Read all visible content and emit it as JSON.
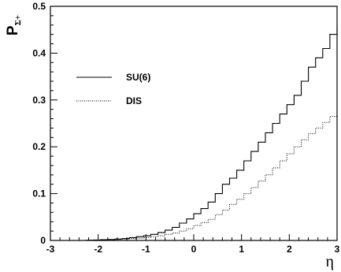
{
  "chart_data": {
    "type": "line",
    "title": "",
    "xlabel": "η",
    "ylabel": {
      "main": "P",
      "sub": "Σ+"
    },
    "xlim": [
      -3,
      3
    ],
    "ylim": [
      0,
      0.5
    ],
    "x_ticks": [
      "-3",
      "-2",
      "-1",
      "0",
      "1",
      "2",
      "3"
    ],
    "y_ticks": [
      "0",
      "0.1",
      "0.2",
      "0.3",
      "0.4",
      "0.5"
    ],
    "grid": false,
    "legend_position": "upper-left",
    "series": [
      {
        "name": "SU(6)",
        "style": "solid",
        "x": [
          -3.0,
          -2.85,
          -2.7,
          -2.55,
          -2.4,
          -2.25,
          -2.1,
          -1.95,
          -1.8,
          -1.65,
          -1.5,
          -1.35,
          -1.2,
          -1.05,
          -0.9,
          -0.75,
          -0.6,
          -0.45,
          -0.3,
          -0.15,
          0.0,
          0.15,
          0.3,
          0.45,
          0.6,
          0.75,
          0.9,
          1.05,
          1.2,
          1.35,
          1.5,
          1.65,
          1.8,
          1.95,
          2.1,
          2.25,
          2.4,
          2.55,
          2.7,
          2.85,
          3.0
        ],
        "y": [
          0.0,
          0.0,
          0.0,
          0.0,
          0.0,
          0.0005,
          0.001,
          0.0015,
          0.002,
          0.003,
          0.004,
          0.006,
          0.008,
          0.01,
          0.013,
          0.017,
          0.022,
          0.028,
          0.037,
          0.046,
          0.057,
          0.068,
          0.082,
          0.1,
          0.12,
          0.133,
          0.15,
          0.17,
          0.19,
          0.21,
          0.23,
          0.25,
          0.27,
          0.29,
          0.31,
          0.34,
          0.37,
          0.39,
          0.41,
          0.44,
          0.46
        ]
      },
      {
        "name": "DIS",
        "style": "dotted",
        "x": [
          -3.0,
          -2.85,
          -2.7,
          -2.55,
          -2.4,
          -2.25,
          -2.1,
          -1.95,
          -1.8,
          -1.65,
          -1.5,
          -1.35,
          -1.2,
          -1.05,
          -0.9,
          -0.75,
          -0.6,
          -0.45,
          -0.3,
          -0.15,
          0.0,
          0.15,
          0.3,
          0.45,
          0.6,
          0.75,
          0.9,
          1.05,
          1.2,
          1.35,
          1.5,
          1.65,
          1.8,
          1.95,
          2.1,
          2.25,
          2.4,
          2.55,
          2.7,
          2.85,
          3.0
        ],
        "y": [
          0.0,
          0.0,
          0.0,
          0.0,
          0.0,
          0.0,
          0.0005,
          0.001,
          0.0015,
          0.002,
          0.003,
          0.004,
          0.005,
          0.006,
          0.008,
          0.01,
          0.013,
          0.016,
          0.02,
          0.025,
          0.032,
          0.038,
          0.045,
          0.055,
          0.065,
          0.077,
          0.088,
          0.1,
          0.113,
          0.127,
          0.14,
          0.155,
          0.17,
          0.185,
          0.2,
          0.215,
          0.228,
          0.24,
          0.252,
          0.265,
          0.28
        ]
      }
    ]
  }
}
